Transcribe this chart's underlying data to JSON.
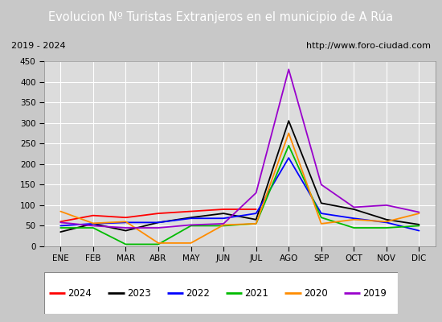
{
  "title": "Evolucion Nº Turistas Extranjeros en el municipio de A Rúa",
  "title_bg": "#4472c4",
  "subtitle_left": "2019 - 2024",
  "subtitle_right": "http://www.foro-ciudad.com",
  "months": [
    "ENE",
    "FEB",
    "MAR",
    "ABR",
    "MAY",
    "JUN",
    "JUL",
    "AGO",
    "SEP",
    "OCT",
    "NOV",
    "DIC"
  ],
  "ylim": [
    0,
    450
  ],
  "yticks": [
    0,
    50,
    100,
    150,
    200,
    250,
    300,
    350,
    400,
    450
  ],
  "series": {
    "2024": {
      "color": "#ff0000",
      "data": [
        60,
        75,
        70,
        80,
        85,
        90,
        90,
        null,
        null,
        null,
        null,
        null
      ]
    },
    "2023": {
      "color": "#000000",
      "data": [
        35,
        55,
        38,
        58,
        70,
        80,
        65,
        305,
        105,
        90,
        65,
        53
      ]
    },
    "2022": {
      "color": "#0000ff",
      "data": [
        50,
        55,
        58,
        58,
        68,
        68,
        80,
        215,
        80,
        68,
        58,
        38
      ]
    },
    "2021": {
      "color": "#00bb00",
      "data": [
        45,
        45,
        5,
        5,
        50,
        50,
        55,
        245,
        70,
        45,
        45,
        50
      ]
    },
    "2020": {
      "color": "#ff8c00",
      "data": [
        85,
        56,
        60,
        8,
        8,
        52,
        55,
        275,
        55,
        65,
        60,
        80
      ]
    },
    "2019": {
      "color": "#9900cc",
      "data": [
        58,
        50,
        45,
        45,
        52,
        55,
        130,
        430,
        150,
        95,
        100,
        83
      ]
    }
  },
  "legend_order": [
    "2024",
    "2023",
    "2022",
    "2021",
    "2020",
    "2019"
  ],
  "bg_color": "#ffffff",
  "plot_bg_color": "#dcdcdc",
  "grid_color": "#ffffff",
  "outer_bg": "#c8c8c8"
}
